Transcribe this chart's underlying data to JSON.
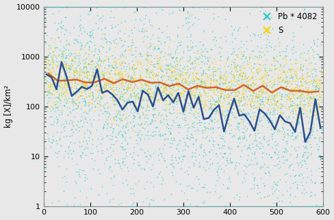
{
  "title": "",
  "xlabel": "",
  "ylabel": "kg [X]/km²",
  "xlim": [
    0,
    600
  ],
  "ylim": [
    1,
    10000
  ],
  "legend_labels": [
    "Pb * 4082",
    "S"
  ],
  "scatter_color_pb": "#29C7C7",
  "scatter_color_s": "#F5D000",
  "line_color_pb": "#2B4E8C",
  "line_color_s": "#D4622A",
  "bg_color": "#E8E8E8",
  "n_pb": 3000,
  "n_s": 2000,
  "seed": 7
}
